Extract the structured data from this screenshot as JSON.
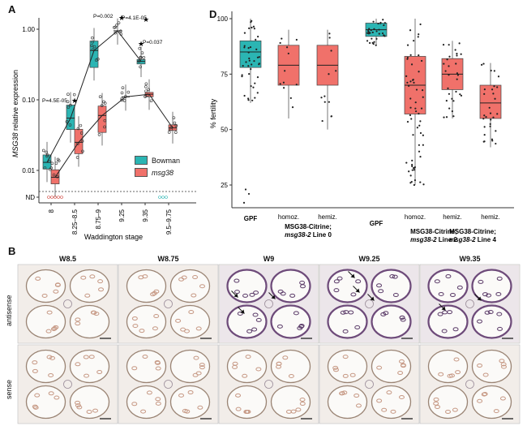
{
  "panelA": {
    "letter": "A",
    "ylabel_italic": "MSG38",
    "ylabel_rest": " relative expression",
    "xlabel": "Waddington stage",
    "yticks": [
      "1.00",
      "0.10",
      "0.01",
      "ND"
    ],
    "categories": [
      "8",
      "8.25–8.5",
      "8.75–9",
      "9.25",
      "9.35",
      "9.5–9.75"
    ],
    "legend": [
      {
        "label": "Bowman",
        "color": "#2bb5b3"
      },
      {
        "label": "msg38",
        "color": "#f0716a",
        "italic": true
      }
    ],
    "pvalues": [
      "P=4.5E-05",
      "P=0.002",
      "P=4.1E-05",
      "P=0.037"
    ],
    "star": "★"
  },
  "panelD": {
    "letter": "D",
    "ylabel": "% fertility",
    "yticks": [
      "100",
      "75",
      "50",
      "25"
    ],
    "groups": [
      {
        "l1": "GPF",
        "l2": ""
      },
      {
        "l1": "homoz.",
        "l2": ""
      },
      {
        "l1": "hemiz.",
        "l2": ""
      },
      {
        "l1": "GPF",
        "l2": ""
      },
      {
        "l1": "homoz.",
        "l2": ""
      },
      {
        "l1": "hemiz.",
        "l2": ""
      },
      {
        "l1": "hemiz.",
        "l2": ""
      }
    ],
    "line_labels": [
      {
        "name": "MSG38-Citrine;",
        "sub_italic": "msg38-2",
        "sub_rest": " Line 0"
      },
      {
        "name": "MSG38-Citrine;",
        "sub_italic": "msg38-2",
        "sub_rest": " Line 2"
      },
      {
        "name": "MSG38-Citrine;",
        "sub_italic": "msg38-2",
        "sub_rest": " Line 4"
      }
    ],
    "colors": {
      "gpf": "#2bb5b3",
      "mut": "#f0716a"
    }
  },
  "panelB": {
    "letter": "B",
    "columns": [
      "W8.5",
      "W8.75",
      "W9",
      "W9.25",
      "W9.35"
    ],
    "rows": [
      "antisense",
      "sense"
    ]
  },
  "chart_data": [
    {
      "type": "box",
      "title": "",
      "xlabel": "Waddington stage",
      "ylabel": "MSG38 relative expression",
      "yscale": "log",
      "categories": [
        "8",
        "8.25–8.5",
        "8.75–9",
        "9.25",
        "9.35",
        "9.5–9.75"
      ],
      "series": [
        {
          "name": "Bowman",
          "medians": [
            0.013,
            0.055,
            0.5,
            0.95,
            0.35,
            null
          ]
        },
        {
          "name": "msg38",
          "medians": [
            0.008,
            0.025,
            0.06,
            0.11,
            0.12,
            0.04
          ]
        }
      ]
    },
    {
      "type": "box",
      "title": "",
      "ylabel": "% fertility",
      "ylim": [
        15,
        100
      ],
      "categories": [
        "GPF",
        "homoz.",
        "hemiz.",
        "GPF",
        "homoz.",
        "hemiz.",
        "hemiz."
      ],
      "medians": [
        85,
        79,
        79,
        95,
        70,
        75,
        62
      ]
    }
  ]
}
